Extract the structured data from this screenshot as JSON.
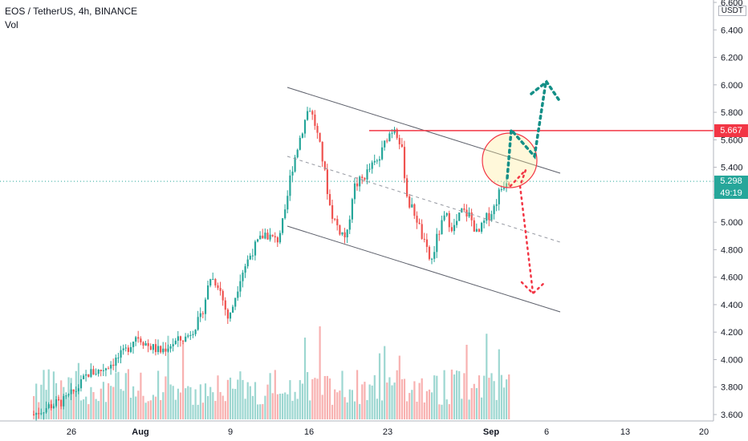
{
  "header": {
    "symbol": "EOS / TetherUS, 4h, BINANCE",
    "volume_label": "Vol",
    "unit": "USDT"
  },
  "chart_data": {
    "type": "candlestick",
    "title": "EOS / TetherUS, 4h, BINANCE",
    "ylim": [
      3.6,
      6.6
    ],
    "y_ticks": [
      "6.600",
      "6.400",
      "6.200",
      "6.000",
      "5.800",
      "5.600",
      "5.400",
      "5.200",
      "5.000",
      "4.800",
      "4.600",
      "4.400",
      "4.200",
      "4.000",
      "3.800",
      "3.600"
    ],
    "x_ticks": [
      "26",
      "Aug",
      "9",
      "16",
      "23",
      "Sep",
      "6",
      "13",
      "20"
    ],
    "current_price": "5.298",
    "countdown": "49:19",
    "resistance_level": "5.667",
    "colors": {
      "up": "#26a69a",
      "down": "#ef5350",
      "resistance": "#f23645",
      "current": "#26a69a",
      "arrow_up": "#138f87",
      "arrow_down": "#f23645"
    }
  }
}
